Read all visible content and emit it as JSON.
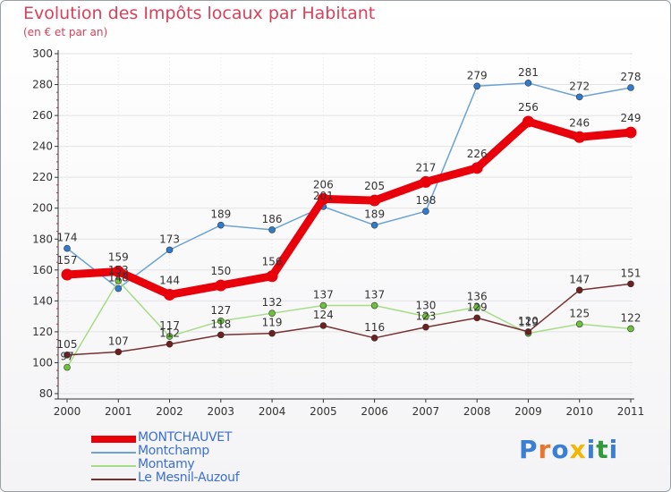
{
  "title": "Evolution des Impôts locaux par Habitant",
  "subtitle": "(en € et par an)",
  "logo": {
    "text": "Proxiti",
    "colors": [
      "#3a7fd4",
      "#e8762c",
      "#3a7fd4",
      "#f2b705",
      "#3a7fd4",
      "#2f9b3b",
      "#3a7fd4"
    ]
  },
  "chart_data": {
    "type": "line",
    "title": "Evolution des Impôts locaux par Habitant",
    "subtitle": "(en € et par an)",
    "xlabel": "",
    "ylabel": "",
    "categories": [
      "2000",
      "2001",
      "2002",
      "2003",
      "2004",
      "2005",
      "2006",
      "2007",
      "2008",
      "2009",
      "2010",
      "2011"
    ],
    "ylim": [
      80,
      300
    ],
    "yticks": [
      "80",
      "100",
      "120",
      "140",
      "160",
      "180",
      "200",
      "220",
      "240",
      "260",
      "280",
      "300"
    ],
    "legend_position": "bottom-left",
    "series": [
      {
        "name": "MONTCHAUVET",
        "color": "#e8000b",
        "marker_color": "#e8000b",
        "values": [
          157,
          159,
          144,
          150,
          156,
          206,
          205,
          217,
          226,
          256,
          246,
          249
        ],
        "labels": [
          "157",
          "159",
          "144",
          "150",
          "156",
          "206",
          "205",
          "217",
          "226",
          "256",
          "246",
          "249"
        ]
      },
      {
        "name": "Montchamp",
        "color": "#6ba3d6",
        "marker_color": "#2f7bd0",
        "values": [
          174,
          148,
          173,
          189,
          186,
          201,
          189,
          198,
          279,
          281,
          272,
          278
        ],
        "labels": [
          "174",
          "148",
          "173",
          "189",
          "186",
          "201",
          "189",
          "198",
          "279",
          "281",
          "272",
          "278"
        ]
      },
      {
        "name": "Montamy",
        "color": "#a6dc86",
        "marker_color": "#6cc23a",
        "values": [
          97,
          153,
          117,
          127,
          132,
          137,
          137,
          130,
          136,
          119,
          125,
          122
        ],
        "labels": [
          "97",
          "153",
          "117",
          "127",
          "132",
          "137",
          "137",
          "130",
          "136",
          "119",
          "125",
          "122"
        ]
      },
      {
        "name": "Le Mesnil-Auzouf",
        "color": "#7a2f2f",
        "marker_color": "#6e1f1f",
        "values": [
          105,
          107,
          112,
          118,
          119,
          124,
          116,
          123,
          129,
          120,
          147,
          151
        ],
        "labels": [
          "105",
          "107",
          "112",
          "118",
          "119",
          "124",
          "116",
          "123",
          "129",
          "120",
          "147",
          "151"
        ]
      }
    ]
  }
}
